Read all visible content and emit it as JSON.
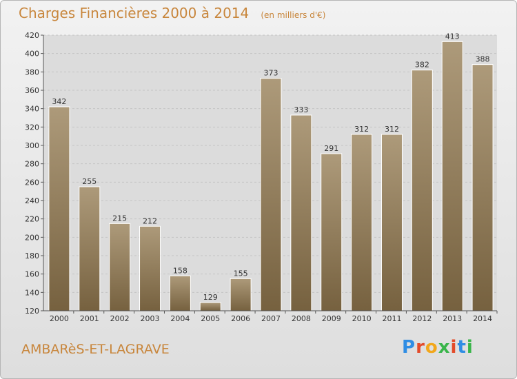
{
  "title": "Charges Financières 2000 à 2014",
  "unit": "(en milliers d'€)",
  "commune": "AMBARèS-ET-LAGRAVE",
  "brand": "Proxiti",
  "colors": {
    "accent": "#c8863c",
    "bar_light": "#ad9a7a",
    "bar_dark": "#76613f",
    "logo": [
      "#2f8de4",
      "#e34b2a",
      "#f2a71b",
      "#39b54a",
      "#e34b2a",
      "#2f8de4",
      "#39b54a"
    ]
  },
  "chart_data": {
    "type": "bar",
    "title": "Charges Financières 2000 à 2014",
    "subtitle": "(en milliers d'€)",
    "categories": [
      "2000",
      "2001",
      "2002",
      "2003",
      "2004",
      "2005",
      "2006",
      "2007",
      "2008",
      "2009",
      "2010",
      "2011",
      "2012",
      "2013",
      "2014"
    ],
    "values": [
      342,
      255,
      215,
      212,
      158,
      129,
      155,
      373,
      333,
      291,
      312,
      312,
      382,
      413,
      388
    ],
    "xlabel": "",
    "ylabel": "",
    "ylim": [
      120,
      420
    ],
    "yticks": [
      120,
      140,
      160,
      180,
      200,
      220,
      240,
      260,
      280,
      300,
      320,
      340,
      360,
      380,
      400,
      420
    ],
    "grid": true,
    "legend": "none"
  }
}
